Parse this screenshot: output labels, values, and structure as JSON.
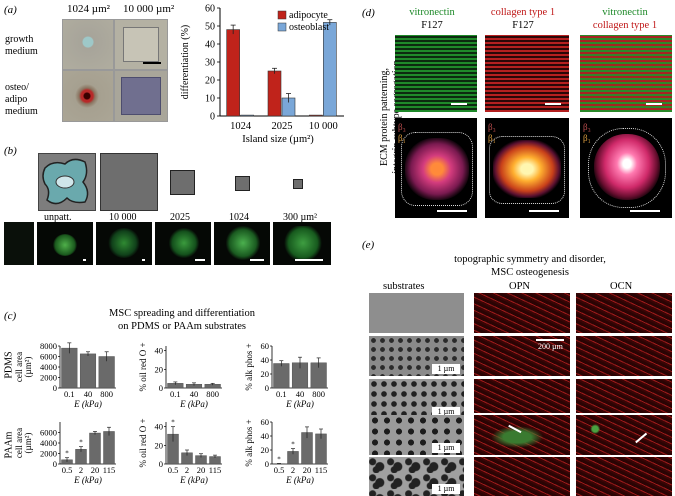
{
  "panel_a": {
    "label": "(a)",
    "col_headers": [
      "1024 µm²",
      "10 000 µm²"
    ],
    "row_labels": [
      "growth\nmedium",
      "osteo/\nadipo\nmedium"
    ],
    "chart_data": {
      "type": "bar",
      "ylabel": "differentiation (%)",
      "xlabel": "Island size (µm²)",
      "ylim": [
        0,
        60
      ],
      "yticks": [
        "0",
        "10",
        "20",
        "30",
        "40",
        "50",
        "60"
      ],
      "categories": [
        "1024",
        "2025",
        "10 000"
      ],
      "series": [
        {
          "name": "adipocyte",
          "color": "#c0231b",
          "values": [
            48,
            25,
            0.5
          ]
        },
        {
          "name": "osteoblast",
          "color": "#7aa7d8",
          "values": [
            0.5,
            10,
            52
          ]
        }
      ],
      "legend": "top-right"
    }
  },
  "panel_b": {
    "label": "(b)",
    "labels": [
      "unpatt.",
      "10 000",
      "2025",
      "1024",
      "300 µm²"
    ]
  },
  "panel_c": {
    "label": "(c)",
    "title": "MSC spreading and differentiation\non PDMS or PAAm substrates",
    "pdms_label": "PDMS",
    "paam_label": "PAAm",
    "xlabel": "E (kPa)",
    "charts": [
      {
        "ylabel": "cell area\n(µm²)",
        "yticks": [
          "0",
          "2000",
          "4000",
          "6000",
          "8000"
        ],
        "ymax": 8000,
        "categories": [
          "0.1",
          "40",
          "800"
        ],
        "values": [
          7600,
          6500,
          6000
        ],
        "err": [
          1000,
          400,
          900
        ]
      },
      {
        "ylabel": "% oil red O +",
        "yticks": [
          "0",
          "20",
          "40"
        ],
        "ymax": 45,
        "categories": [
          "0.1",
          "40",
          "800"
        ],
        "values": [
          5,
          4,
          4
        ],
        "err": [
          1.5,
          1.5,
          1
        ]
      },
      {
        "ylabel": "% alk phos +",
        "yticks": [
          "0",
          "20",
          "40",
          "60"
        ],
        "ymax": 60,
        "categories": [
          "0.1",
          "40",
          "800"
        ],
        "values": [
          35,
          36,
          36
        ],
        "err": [
          4,
          8,
          7
        ]
      },
      {
        "ylabel": "cell area\n(µm²)",
        "yticks": [
          "0",
          "2000",
          "4000",
          "6000"
        ],
        "ymax": 8000,
        "categories": [
          "0.5",
          "2",
          "20",
          "115"
        ],
        "values": [
          800,
          2800,
          5900,
          6200
        ],
        "err": [
          400,
          500,
          300,
          800
        ],
        "stars": [
          true,
          true,
          false,
          false
        ]
      },
      {
        "ylabel": "% oil red O +",
        "yticks": [
          "0",
          "20",
          "40"
        ],
        "ymax": 45,
        "categories": [
          "0.5",
          "2",
          "20",
          "115"
        ],
        "values": [
          32,
          12,
          9,
          8
        ],
        "err": [
          8,
          3,
          2,
          1.5
        ],
        "stars": [
          true,
          false,
          false,
          false
        ]
      },
      {
        "ylabel": "% alk phos +",
        "yticks": [
          "0",
          "20",
          "40",
          "60"
        ],
        "ymax": 60,
        "categories": [
          "0.5",
          "2",
          "20",
          "115"
        ],
        "values": [
          0.5,
          18,
          45,
          43
        ],
        "err": [
          0.3,
          4,
          8,
          7
        ],
        "stars": [
          true,
          true,
          false,
          false
        ]
      }
    ]
  },
  "panel_d": {
    "label": "(d)",
    "col_titles": [
      [
        "vitronectin",
        "F127"
      ],
      [
        "collagen type 1",
        "F127"
      ],
      [
        "vitronectin",
        "collagen type 1"
      ]
    ],
    "side_label": "ECM protein patterning,\nintegrin subtype segregation",
    "integrin_labels": [
      "β₃",
      "β₁"
    ]
  },
  "panel_e": {
    "label": "(e)",
    "title": "topographic symmetry and disorder,\nMSC osteogenesis",
    "col_headers": [
      "substrates",
      "OPN",
      "OCN"
    ],
    "scale_um": "1 µm",
    "scale_200": "200 µm"
  }
}
